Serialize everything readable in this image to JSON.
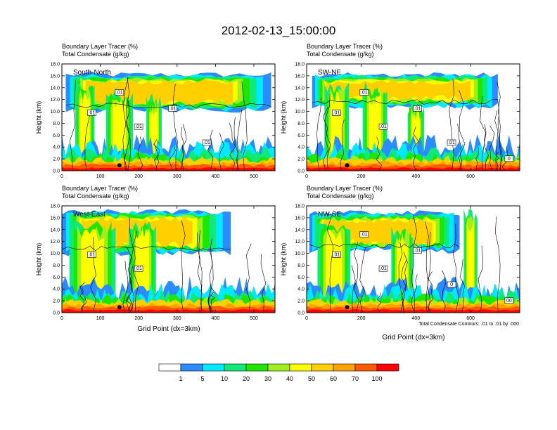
{
  "figure_title": "2012-02-13_15:00:00",
  "colorbar": {
    "colors": [
      "#ffffff",
      "#2a8cff",
      "#00e9ff",
      "#10e97a",
      "#1ee600",
      "#a0ee1e",
      "#ffff00",
      "#ffd000",
      "#ffa200",
      "#ff5a00",
      "#ff0000"
    ],
    "labels": [
      "1",
      "5",
      "10",
      "20",
      "30",
      "40",
      "50",
      "60",
      "70",
      "100"
    ]
  },
  "footnote": "Total Condensate Contours: .01 to .01 by .000",
  "chart_data": [
    {
      "type": "heatmap",
      "panel": "top-left",
      "title_line1": "Boundary Layer Tracer    (%)",
      "title_line2": "Total Condensate   (g/kg)",
      "region_label": "South-North",
      "ylabel": "Height (km)",
      "xlabel": "",
      "xlim": [
        0,
        555
      ],
      "ylim": [
        0,
        18
      ],
      "xticks": [
        "0",
        "100",
        "200",
        "300",
        "400",
        "500"
      ],
      "yticks": [
        "0.0",
        "2.0",
        "4.0",
        "6.0",
        "8.0",
        "10.0",
        "12.0",
        "14.0",
        "16.0",
        "18.0"
      ],
      "contour_labels": [
        ".01",
        ".01",
        ".01",
        ".01",
        ".01"
      ],
      "anvil": {
        "x0": 10,
        "x1": 545,
        "base": 10.2,
        "top": 16.2
      },
      "cores": [
        {
          "x": 60,
          "w": 50,
          "top": 15
        },
        {
          "x": 150,
          "w": 70,
          "top": 14
        },
        {
          "x": 240,
          "w": 40,
          "top": 13
        }
      ]
    },
    {
      "type": "heatmap",
      "panel": "top-right",
      "title_line1": "Boundary Layer Tracer    (%)",
      "title_line2": "Total Condensate   (g/kg)",
      "region_label": "SW-NE",
      "ylabel": "Height (km)",
      "xlabel": "",
      "xlim": [
        0,
        780
      ],
      "ylim": [
        0,
        18
      ],
      "xticks": [
        "0",
        "200",
        "400",
        "600"
      ],
      "yticks": [
        "0.0",
        "2.0",
        "4.0",
        "6.0",
        "8.0",
        "10.0",
        "12.0",
        "14.0",
        "16.0",
        "18.0"
      ],
      "contour_labels": [
        ".01",
        ".01",
        ".01",
        ".01",
        ".01",
        "0"
      ],
      "anvil": {
        "x0": 20,
        "x1": 700,
        "base": 10.8,
        "top": 16.2
      },
      "cores": [
        {
          "x": 110,
          "w": 90,
          "top": 15
        },
        {
          "x": 250,
          "w": 90,
          "top": 15
        },
        {
          "x": 400,
          "w": 60,
          "top": 12
        }
      ]
    },
    {
      "type": "heatmap",
      "panel": "bottom-left",
      "title_line1": "Boundary Layer Tracer    (%)",
      "title_line2": "Total Condensate   (g/kg)",
      "region_label": "West-East",
      "ylabel": "Height (km)",
      "xlabel": "Grid Point (dx=3km)",
      "xlim": [
        0,
        555
      ],
      "ylim": [
        0,
        18
      ],
      "xticks": [
        "0",
        "100",
        "200",
        "300",
        "400",
        "500"
      ],
      "yticks": [
        "0.0",
        "2.0",
        "4.0",
        "6.0",
        "8.0",
        "10.0",
        "12.0",
        "14.0",
        "16.0",
        "18.0"
      ],
      "contour_labels": [
        ".01",
        ".01"
      ],
      "anvil": {
        "x0": 0,
        "x1": 440,
        "base": 10,
        "top": 17
      },
      "cores": [
        {
          "x": 80,
          "w": 120,
          "top": 16
        },
        {
          "x": 210,
          "w": 70,
          "top": 16
        }
      ]
    },
    {
      "type": "heatmap",
      "panel": "bottom-right",
      "title_line1": "Boundary Layer Tracer    (%)",
      "title_line2": "Total Condensate   (g/kg)",
      "region_label": "NW-SE",
      "ylabel": "Height (km)",
      "xlabel": "Grid Point (dx=3km)",
      "xlim": [
        0,
        780
      ],
      "ylim": [
        0,
        18
      ],
      "xticks": [
        "0",
        "200",
        "400",
        "600"
      ],
      "yticks": [
        "0.0",
        "2.0",
        "4.0",
        "6.0",
        "8.0",
        "10.0",
        "12.0",
        "14.0",
        "16.0",
        "18.0"
      ],
      "contour_labels": [
        ".01",
        ".01",
        ".01",
        ".01",
        "0",
        "00"
      ],
      "anvil": {
        "x0": 10,
        "x1": 560,
        "base": 10.5,
        "top": 16.8
      },
      "cores": [
        {
          "x": 100,
          "w": 120,
          "top": 15.5
        },
        {
          "x": 350,
          "w": 80,
          "top": 15
        },
        {
          "x": 600,
          "w": 50,
          "top": 17.5
        }
      ]
    }
  ]
}
